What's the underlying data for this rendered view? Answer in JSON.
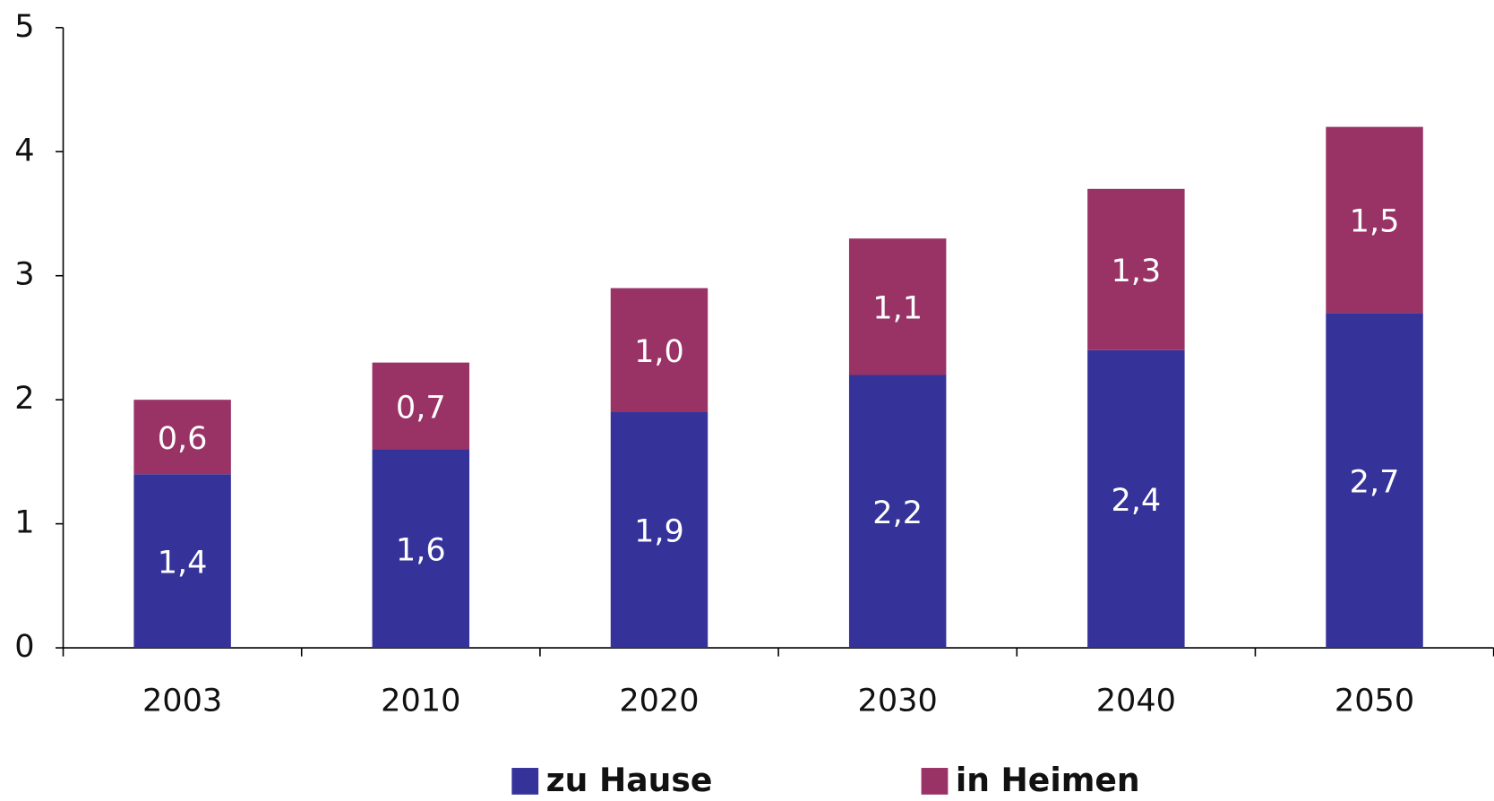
{
  "chart_data": {
    "type": "stacked-bar",
    "categories": [
      "2003",
      "2010",
      "2020",
      "2030",
      "2040",
      "2050"
    ],
    "series": [
      {
        "name": "zu Hause",
        "color": "#35339a",
        "values": [
          1.4,
          1.6,
          1.9,
          2.2,
          2.4,
          2.7
        ],
        "value_labels": [
          "1,4",
          "1,6",
          "1,9",
          "2,2",
          "2,4",
          "2,7"
        ]
      },
      {
        "name": "in Heimen",
        "color": "#993366",
        "values": [
          0.6,
          0.7,
          1.0,
          1.1,
          1.3,
          1.5
        ],
        "value_labels": [
          "0,6",
          "0,7",
          "1,0",
          "1,1",
          "1,3",
          "1,5"
        ]
      }
    ],
    "ylim": [
      0,
      5
    ],
    "yticks": [
      0,
      1,
      2,
      3,
      4,
      5
    ],
    "grid": false,
    "legend": "bottom"
  }
}
